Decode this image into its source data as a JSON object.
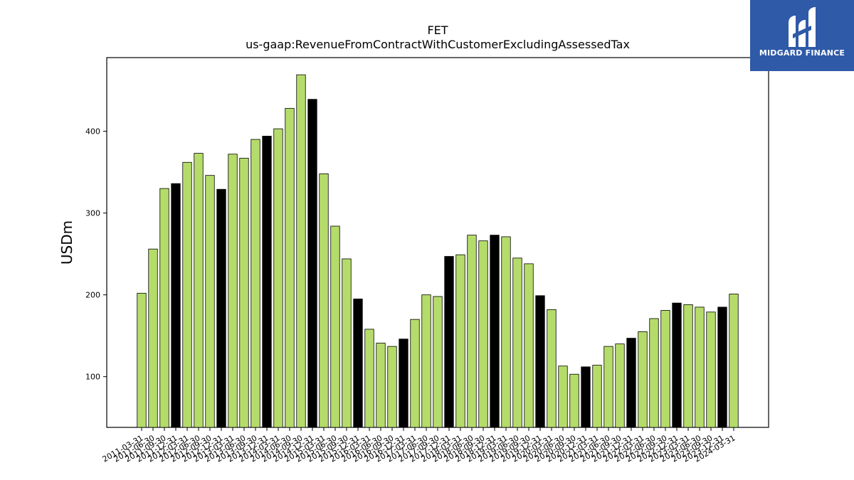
{
  "chart_data": {
    "type": "bar",
    "title": "FET",
    "subtitle": "us-gaap:RevenueFromContractWithCustomerExcludingAssessedTax",
    "ylabel": "USDm",
    "xlabel": "",
    "ylim": [
      38,
      490
    ],
    "yticks": [
      100,
      200,
      300,
      400
    ],
    "grid": false,
    "colors": {
      "normal": "#b5dc6a",
      "highlight": "#000000",
      "edge": "#000000"
    },
    "categories": [
      "2011-03-31",
      "2011-06-30",
      "2011-09-30",
      "2011-12-31",
      "2012-03-31",
      "2012-06-30",
      "2012-09-30",
      "2012-12-31",
      "2013-03-31",
      "2013-06-30",
      "2013-09-30",
      "2013-12-31",
      "2014-03-31",
      "2014-06-30",
      "2014-09-30",
      "2014-12-31",
      "2015-03-31",
      "2015-06-30",
      "2015-09-30",
      "2015-12-31",
      "2016-03-31",
      "2016-06-30",
      "2016-09-30",
      "2016-12-31",
      "2017-03-31",
      "2017-06-30",
      "2017-09-30",
      "2017-12-31",
      "2018-03-31",
      "2018-06-30",
      "2018-09-30",
      "2018-12-31",
      "2019-03-31",
      "2019-06-30",
      "2019-09-30",
      "2019-12-31",
      "2020-03-31",
      "2020-06-30",
      "2020-09-30",
      "2020-12-31",
      "2021-03-31",
      "2021-06-30",
      "2021-09-30",
      "2021-12-31",
      "2022-03-31",
      "2022-06-30",
      "2022-09-30",
      "2022-12-31",
      "2023-03-31",
      "2023-06-30",
      "2023-09-30",
      "2023-12-31",
      "2024-03-31"
    ],
    "values": [
      202,
      256,
      330,
      336,
      362,
      373,
      346,
      329,
      372,
      367,
      390,
      394,
      403,
      428,
      469,
      439,
      348,
      284,
      244,
      195,
      158,
      141,
      137,
      146,
      170,
      200,
      198,
      247,
      249,
      273,
      266,
      273,
      271,
      245,
      238,
      199,
      182,
      113,
      103,
      112,
      114,
      137,
      140,
      147,
      155,
      171,
      181,
      190,
      188,
      185,
      179,
      185,
      201
    ],
    "highlighted": [
      3,
      7,
      11,
      15,
      19,
      23,
      27,
      31,
      35,
      39,
      43,
      47,
      51
    ]
  },
  "logo": {
    "text": "MIDGARD FINANCE"
  }
}
